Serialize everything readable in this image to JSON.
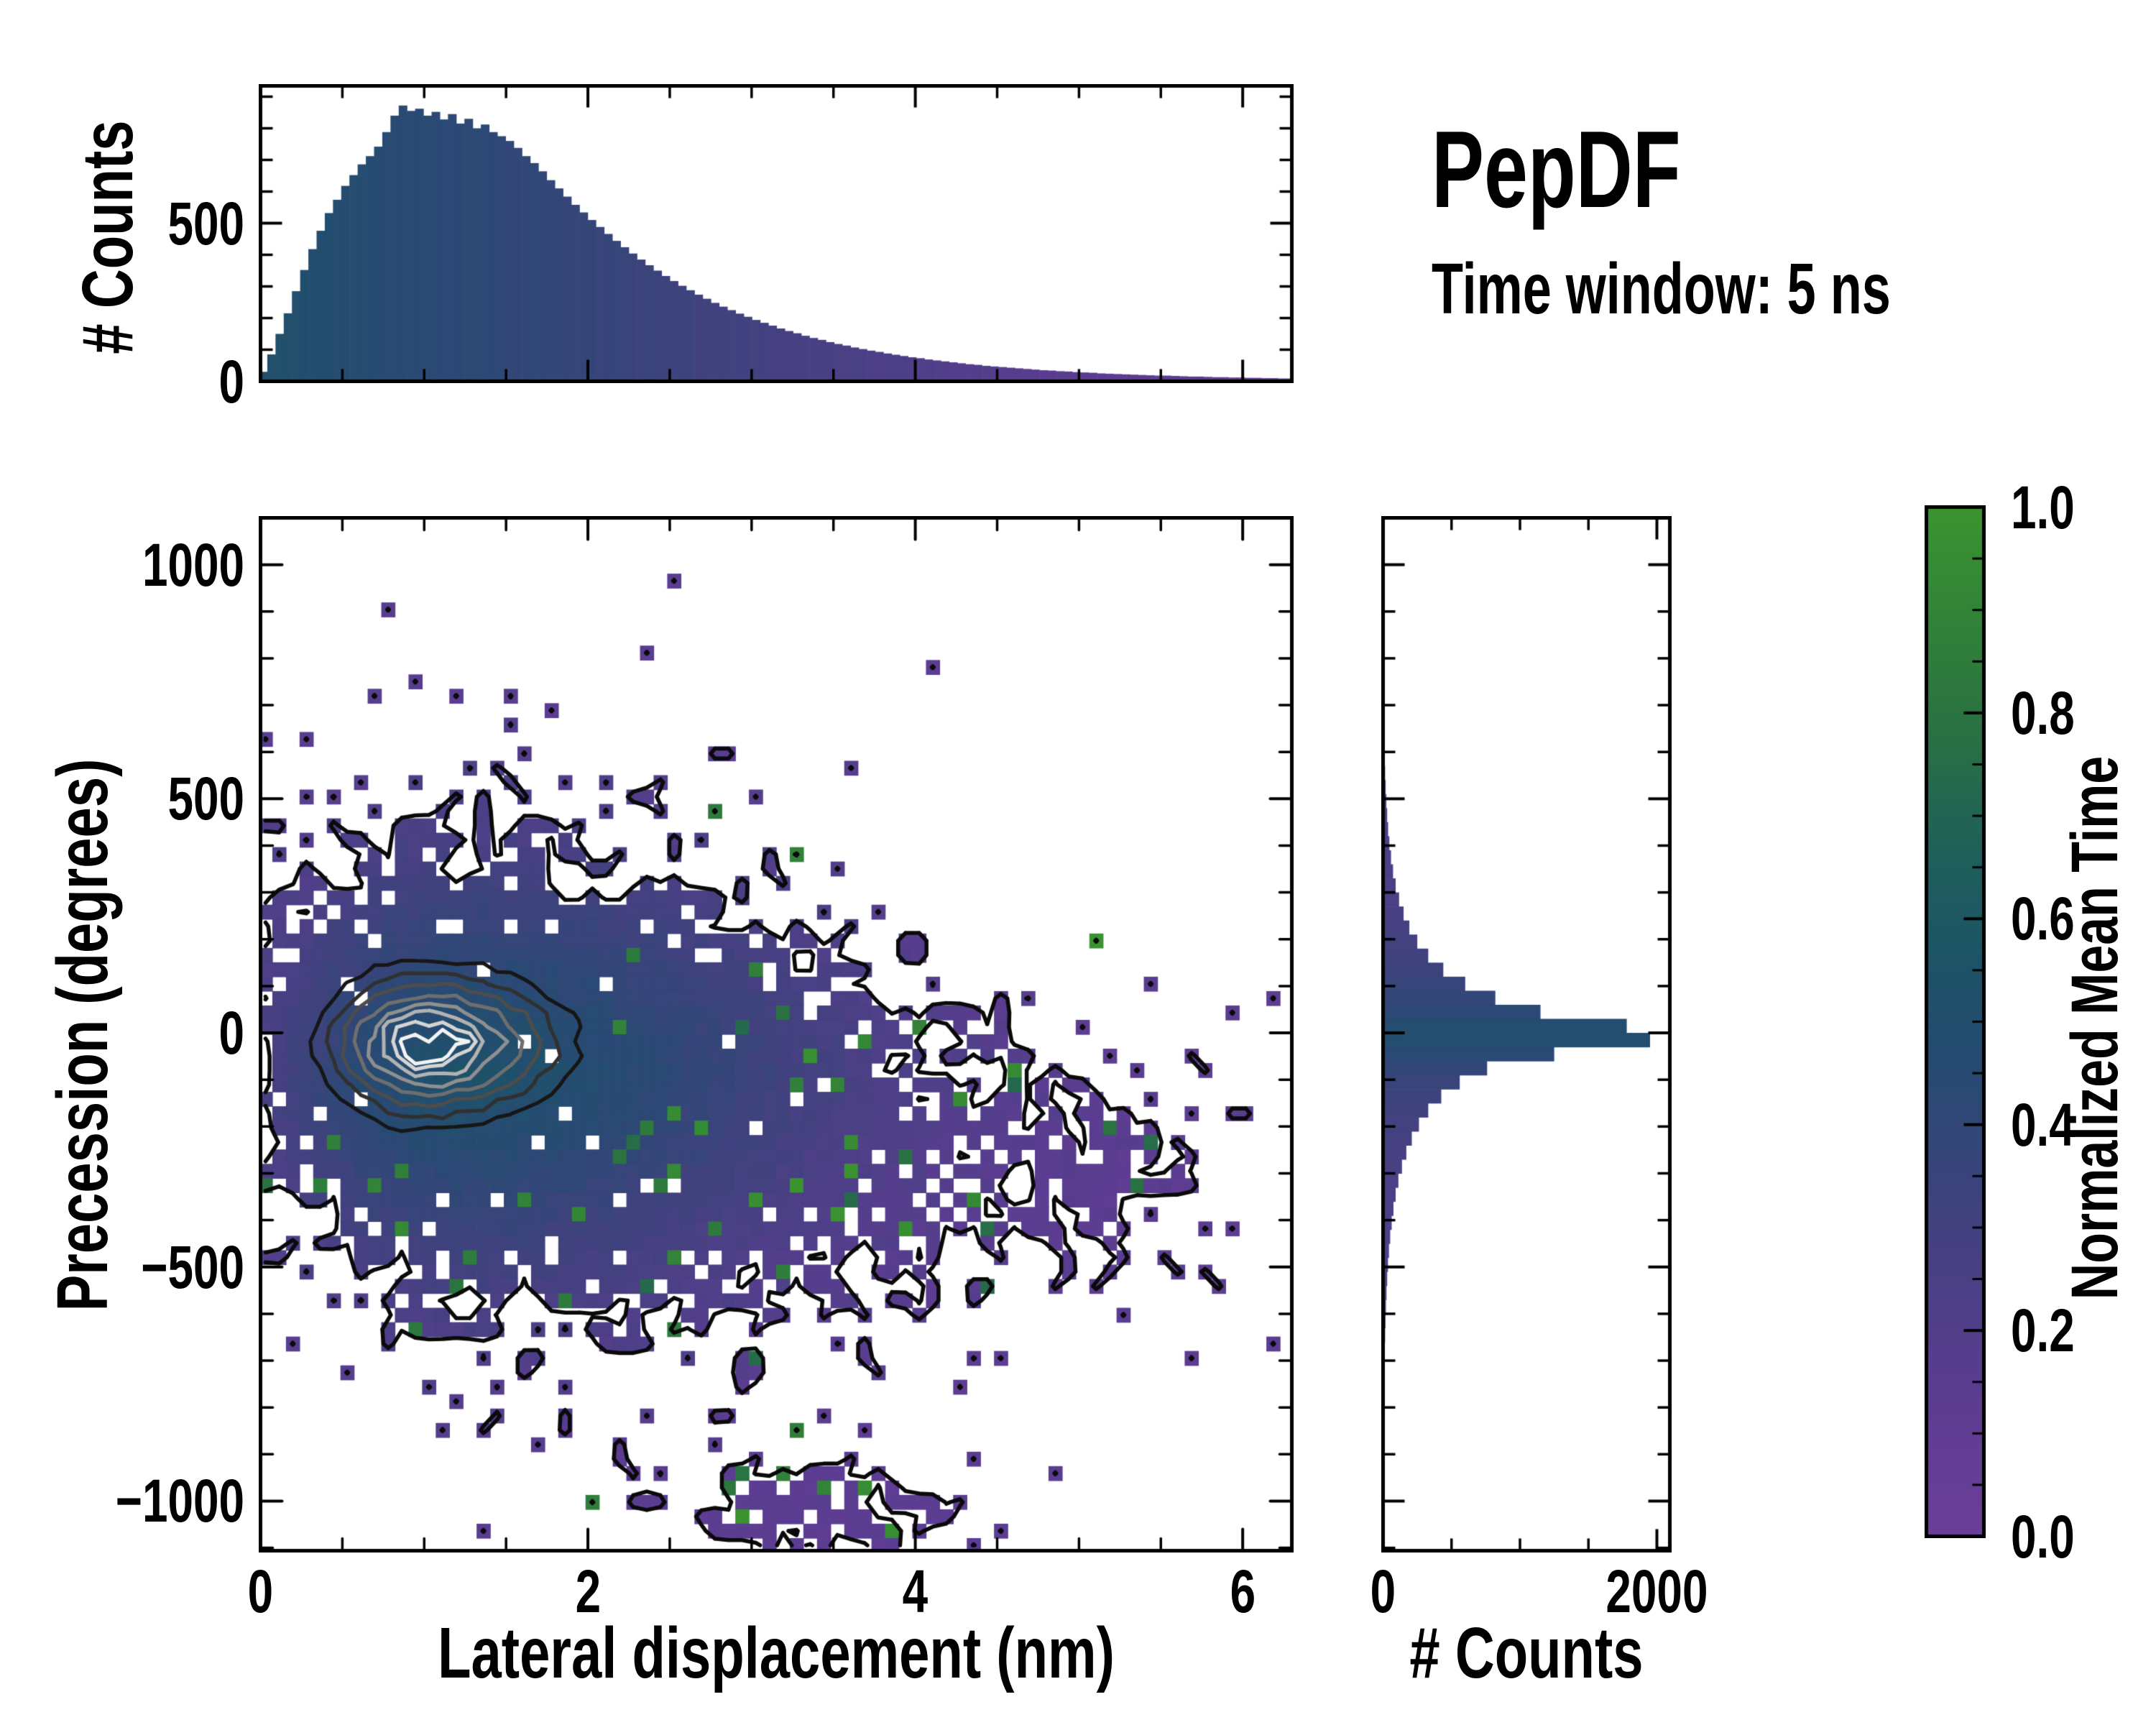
{
  "title": "PepDF",
  "subtitle": "Time window: 5 ns",
  "labels": {
    "top_ylabel": "# Counts",
    "main_ylabel": "Precession (degrees)",
    "main_xlabel": "Lateral displacement (nm)",
    "right_xlabel": "# Counts",
    "cbar_label": "Normalized Mean Time"
  },
  "ticks": {
    "main_x_values": [
      0,
      2,
      4,
      6
    ],
    "main_x_labels": [
      "0",
      "2",
      "4",
      "6"
    ],
    "main_x_minor_step": 0.5,
    "main_y_values": [
      1000,
      500,
      0,
      -500,
      -1000
    ],
    "main_y_labels": [
      "1000",
      "500",
      "0",
      "−500",
      "−1000"
    ],
    "main_y_minor_step": 100,
    "top_y_values": [
      500,
      0
    ],
    "top_y_labels": [
      "500",
      "0"
    ],
    "top_y_minor_step": 100,
    "right_x_values": [
      0,
      2000
    ],
    "right_x_labels": [
      "0",
      "2000"
    ],
    "right_x_minor_step": 500,
    "cbar_values": [
      1.0,
      0.8,
      0.6,
      0.4,
      0.2,
      0.0
    ],
    "cbar_labels": [
      "1.0",
      "0.8",
      "0.6",
      "0.4",
      "0.2",
      "0.0"
    ],
    "cbar_minor_step": 0.05
  },
  "colors": {
    "background": "#ffffff",
    "axis": "#000000",
    "support_outline": "#0a0a0a",
    "colormap_stops": [
      [
        0.0,
        "#6b3e98"
      ],
      [
        0.15,
        "#5a3d90"
      ],
      [
        0.3,
        "#42417f"
      ],
      [
        0.45,
        "#284a73"
      ],
      [
        0.55,
        "#1d5268"
      ],
      [
        0.65,
        "#1e5e5c"
      ],
      [
        0.8,
        "#2b7440"
      ],
      [
        1.0,
        "#3b9430"
      ]
    ],
    "contour_colors": [
      "#161616",
      "#303030",
      "#4d4d4d",
      "#6e6e6e",
      "#8f8f8f",
      "#b2b2b2",
      "#d4d4d4",
      "#f2f2f2"
    ]
  },
  "chart_data": [
    {
      "type": "heatmap",
      "role": "joint-2d-histogram",
      "xlabel": "Lateral displacement (nm)",
      "ylabel": "Precession (degrees)",
      "xlim": [
        0,
        6.3
      ],
      "ylim": [
        -1106,
        1100
      ],
      "grid": {
        "nx": 76,
        "ny": 72
      },
      "color_meaning": "Normalized Mean Time (0 purple - 1 green), white = empty bin",
      "colorbar_range": [
        0,
        1
      ],
      "seed": 7,
      "density_model": {
        "comment": "occupancy support: skewed gaussian blob + secondary clusters, read from pixels",
        "main": {
          "x_center": 1.3,
          "x_sigma_left": 1.0,
          "x_sigma_right": 2.2,
          "y_center_at_x0": -30,
          "y_center_drift_per_nm": -45,
          "y_sigma": 330,
          "y_power": 1.7,
          "amp": 3.5
        },
        "bottom_cluster": {
          "x": 3.3,
          "y": -1030,
          "x_sigma": 0.8,
          "y_sigma": 110,
          "amp": 0.8
        },
        "right_cluster": {
          "x": 5.1,
          "y": -280,
          "x_sigma": 0.7,
          "y_sigma": 170,
          "amp": 0.5
        },
        "dropout": 0.04
      },
      "mean_time_model": {
        "core": {
          "x_center": 1.2,
          "x_sigma_left": 0.8,
          "x_sigma_right": 1.6,
          "y_center": -80,
          "y_sigma": 300,
          "y_power": 1.6
        },
        "value": "0.13 + 0.40*sqrt(D) + noise",
        "green_outlier_value_range": [
          0.72,
          1.0
        ],
        "green_outlier_prob_lower_right": 0.055,
        "green_outlier_prob_elsewhere": 0.004
      },
      "contours": {
        "comment": "grayscale kernel-density rings centered near (1.0, -25)",
        "center": {
          "x": 1.0,
          "y": -25
        },
        "x_sigma_left": 0.38,
        "x_sigma_right": 0.55,
        "y_sigma": 95,
        "y_power": 1.8,
        "levels": [
          0.045,
          0.1,
          0.18,
          0.3,
          0.44,
          0.58,
          0.72,
          0.85
        ],
        "support_level": 0.38
      }
    },
    {
      "type": "bar",
      "role": "top-marginal-histogram",
      "xlabel": "Lateral displacement (nm)",
      "ylabel": "# Counts",
      "xlim": [
        0,
        6.3
      ],
      "ylim": [
        0,
        934
      ],
      "yticks": [
        0,
        500
      ],
      "bin_width": 0.05,
      "x_first_bin_center": 0.025,
      "bar_value_to_color": "v = clamp(0.52 - 0.075*x, 0.13, 0.52) on colormap",
      "values": [
        30,
        85,
        150,
        215,
        285,
        352,
        418,
        476,
        532,
        574,
        618,
        652,
        686,
        712,
        742,
        788,
        840,
        872,
        855,
        862,
        840,
        852,
        828,
        845,
        815,
        830,
        800,
        812,
        788,
        775,
        760,
        738,
        712,
        690,
        664,
        636,
        610,
        584,
        558,
        534,
        510,
        488,
        466,
        444,
        424,
        404,
        385,
        367,
        350,
        333,
        317,
        302,
        288,
        274,
        261,
        248,
        236,
        225,
        214,
        204,
        194,
        185,
        176,
        167,
        159,
        152,
        144,
        137,
        131,
        124,
        118,
        113,
        107,
        102,
        97,
        93,
        88,
        84,
        80,
        76,
        73,
        69,
        66,
        63,
        60,
        57,
        54,
        52,
        49,
        47,
        45,
        43,
        41,
        39,
        37,
        35,
        34,
        32,
        31,
        29,
        28,
        27,
        25,
        24,
        23,
        22,
        21,
        20,
        19,
        18,
        18,
        17,
        16,
        15,
        15,
        14,
        13,
        13,
        12,
        12,
        11,
        11,
        10,
        10,
        9,
        9
      ]
    },
    {
      "type": "bar",
      "role": "right-marginal-histogram",
      "orientation": "horizontal",
      "xlabel": "# Counts",
      "ylabel": "Precession (degrees)",
      "xlim": [
        0,
        2120
      ],
      "xticks": [
        0,
        2000
      ],
      "ylim": [
        -1106,
        1100
      ],
      "bin_height": 30,
      "y_first_bin_center": -1095,
      "bar_value_to_color": "v = 0.13 + 0.37*(count/1950)^0.4 on colormap",
      "values": [
        1,
        1,
        2,
        2,
        3,
        3,
        4,
        4,
        5,
        6,
        7,
        8,
        9,
        11,
        13,
        15,
        18,
        21,
        25,
        30,
        36,
        43,
        52,
        63,
        76,
        92,
        112,
        138,
        170,
        210,
        262,
        330,
        425,
        560,
        760,
        1250,
        1950,
        1780,
        1150,
        820,
        600,
        440,
        330,
        250,
        192,
        150,
        117,
        92,
        73,
        58,
        46,
        37,
        30,
        24,
        19,
        15,
        12,
        10,
        8,
        6,
        4,
        3,
        2,
        1,
        1,
        0,
        0,
        0,
        0,
        0,
        0,
        0,
        0,
        0
      ]
    },
    {
      "type": "colorbar",
      "label": "Normalized Mean Time",
      "range": [
        0,
        1
      ],
      "ticks": [
        0.0,
        0.2,
        0.4,
        0.6,
        0.8,
        1.0
      ]
    }
  ]
}
